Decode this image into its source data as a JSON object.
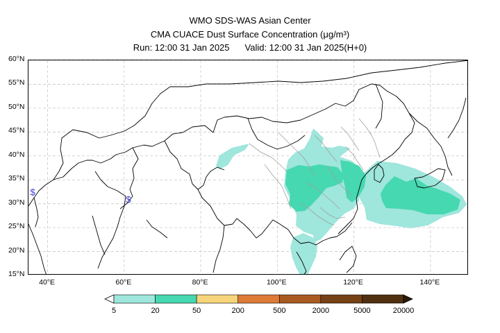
{
  "header": {
    "line1": "WMO SDS-WAS Asian Center",
    "line2": "CMA CUACE Dust Surface Concentration (μg/m³)",
    "run": "Run: 12:00 31 Jan 2025",
    "valid": "Valid: 12:00 31 Jan 2025(H+0)"
  },
  "map": {
    "lon_range": [
      35,
      150
    ],
    "lat_range": [
      15,
      60
    ],
    "lat_ticks": [
      {
        "value": 60,
        "label": "60°N"
      },
      {
        "value": 55,
        "label": "55°N"
      },
      {
        "value": 50,
        "label": "50°N"
      },
      {
        "value": 45,
        "label": "45°N"
      },
      {
        "value": 40,
        "label": "40°N"
      },
      {
        "value": 35,
        "label": "35°N"
      },
      {
        "value": 30,
        "label": "30°N"
      },
      {
        "value": 25,
        "label": "25°N"
      },
      {
        "value": 20,
        "label": "20°N"
      },
      {
        "value": 15,
        "label": "15°N"
      }
    ],
    "lon_ticks": [
      {
        "value": 40,
        "label": "40°E"
      },
      {
        "value": 60,
        "label": "60°E"
      },
      {
        "value": 80,
        "label": "80°E"
      },
      {
        "value": 100,
        "label": "100°E"
      },
      {
        "value": 120,
        "label": "120°E"
      },
      {
        "value": 140,
        "label": "140°E"
      }
    ],
    "grid": true,
    "colors": {
      "level_5_20": "#9fe6dc",
      "level_20_50": "#46d8b0",
      "border": "#000000",
      "province": "#a0a0a0",
      "symbol": "#3b3bd6"
    },
    "symbols": [
      {
        "lon": 36,
        "lat": 32.5,
        "glyph": "$"
      },
      {
        "lon": 61,
        "lat": 31,
        "glyph": "$"
      }
    ]
  },
  "colorbar": {
    "levels": [
      "5",
      "20",
      "50",
      "200",
      "500",
      "2000",
      "5000",
      "20000"
    ],
    "colors": [
      "#9fe6dc",
      "#46d8b0",
      "#f7d57a",
      "#dd7b37",
      "#a95a21",
      "#774116",
      "#50300f"
    ]
  }
}
